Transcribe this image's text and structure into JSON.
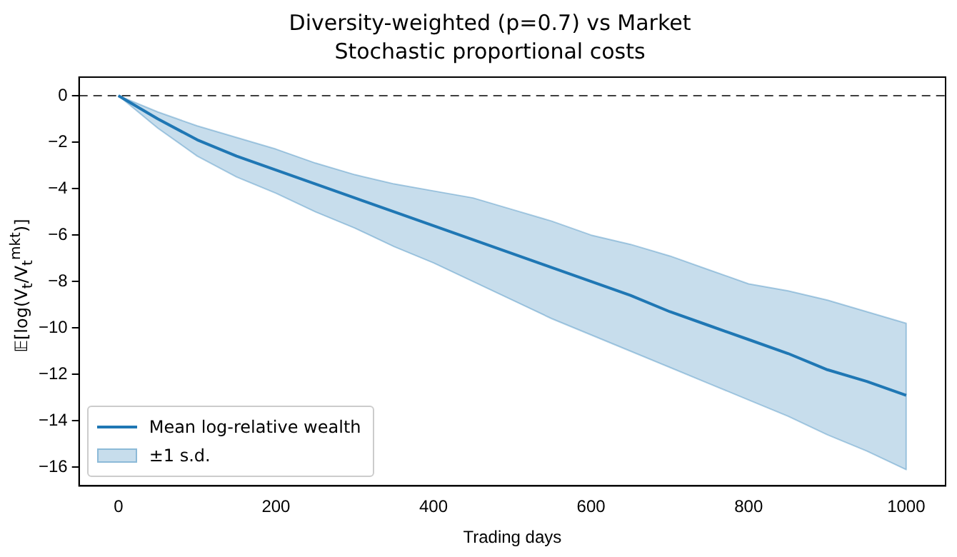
{
  "chart_data": {
    "type": "line",
    "title": "Diversity-weighted (p=0.7) vs Market",
    "subtitle": "Stochastic proportional costs",
    "xlabel": "Trading days",
    "ylabel": "𝔼[log(V$_{t}$/V$_{t}$$^{mkt}$)]",
    "x": [
      0,
      50,
      100,
      150,
      200,
      250,
      300,
      350,
      400,
      450,
      500,
      550,
      600,
      650,
      700,
      750,
      800,
      850,
      900,
      950,
      1000
    ],
    "series": [
      {
        "name": "Mean log-relative wealth",
        "color": "#1f77b4",
        "values": [
          0,
          -1.0,
          -1.9,
          -2.6,
          -3.2,
          -3.8,
          -4.4,
          -5.0,
          -5.6,
          -6.2,
          -6.8,
          -7.4,
          -8.0,
          -8.6,
          -9.3,
          -9.9,
          -10.5,
          -11.1,
          -11.8,
          -12.3,
          -12.9
        ],
        "lower": [
          0,
          -1.4,
          -2.6,
          -3.5,
          -4.2,
          -5.0,
          -5.7,
          -6.5,
          -7.2,
          -8.0,
          -8.8,
          -9.6,
          -10.3,
          -11.0,
          -11.7,
          -12.4,
          -13.1,
          -13.8,
          -14.6,
          -15.3,
          -16.1
        ],
        "upper": [
          0,
          -0.7,
          -1.3,
          -1.8,
          -2.3,
          -2.9,
          -3.4,
          -3.8,
          -4.1,
          -4.4,
          -4.9,
          -5.4,
          -6.0,
          -6.4,
          -6.9,
          -7.5,
          -8.1,
          -8.4,
          -8.8,
          -9.3,
          -9.8
        ]
      }
    ],
    "annotations": [
      "±1 s.d."
    ],
    "xlim": [
      -50,
      1050
    ],
    "xticks": [
      0,
      200,
      400,
      600,
      800,
      1000
    ],
    "ylim": [
      -16.8,
      0.8
    ],
    "yticks": [
      -16,
      -14,
      -12,
      -10,
      -8,
      -6,
      -4,
      -2,
      0
    ],
    "ref_lines": [
      {
        "axis": "y",
        "value": 0,
        "color": "#000000",
        "line_style": "dashed"
      }
    ],
    "grid": false,
    "legend": "bottom left",
    "marker": "none",
    "line_style": "solid"
  }
}
